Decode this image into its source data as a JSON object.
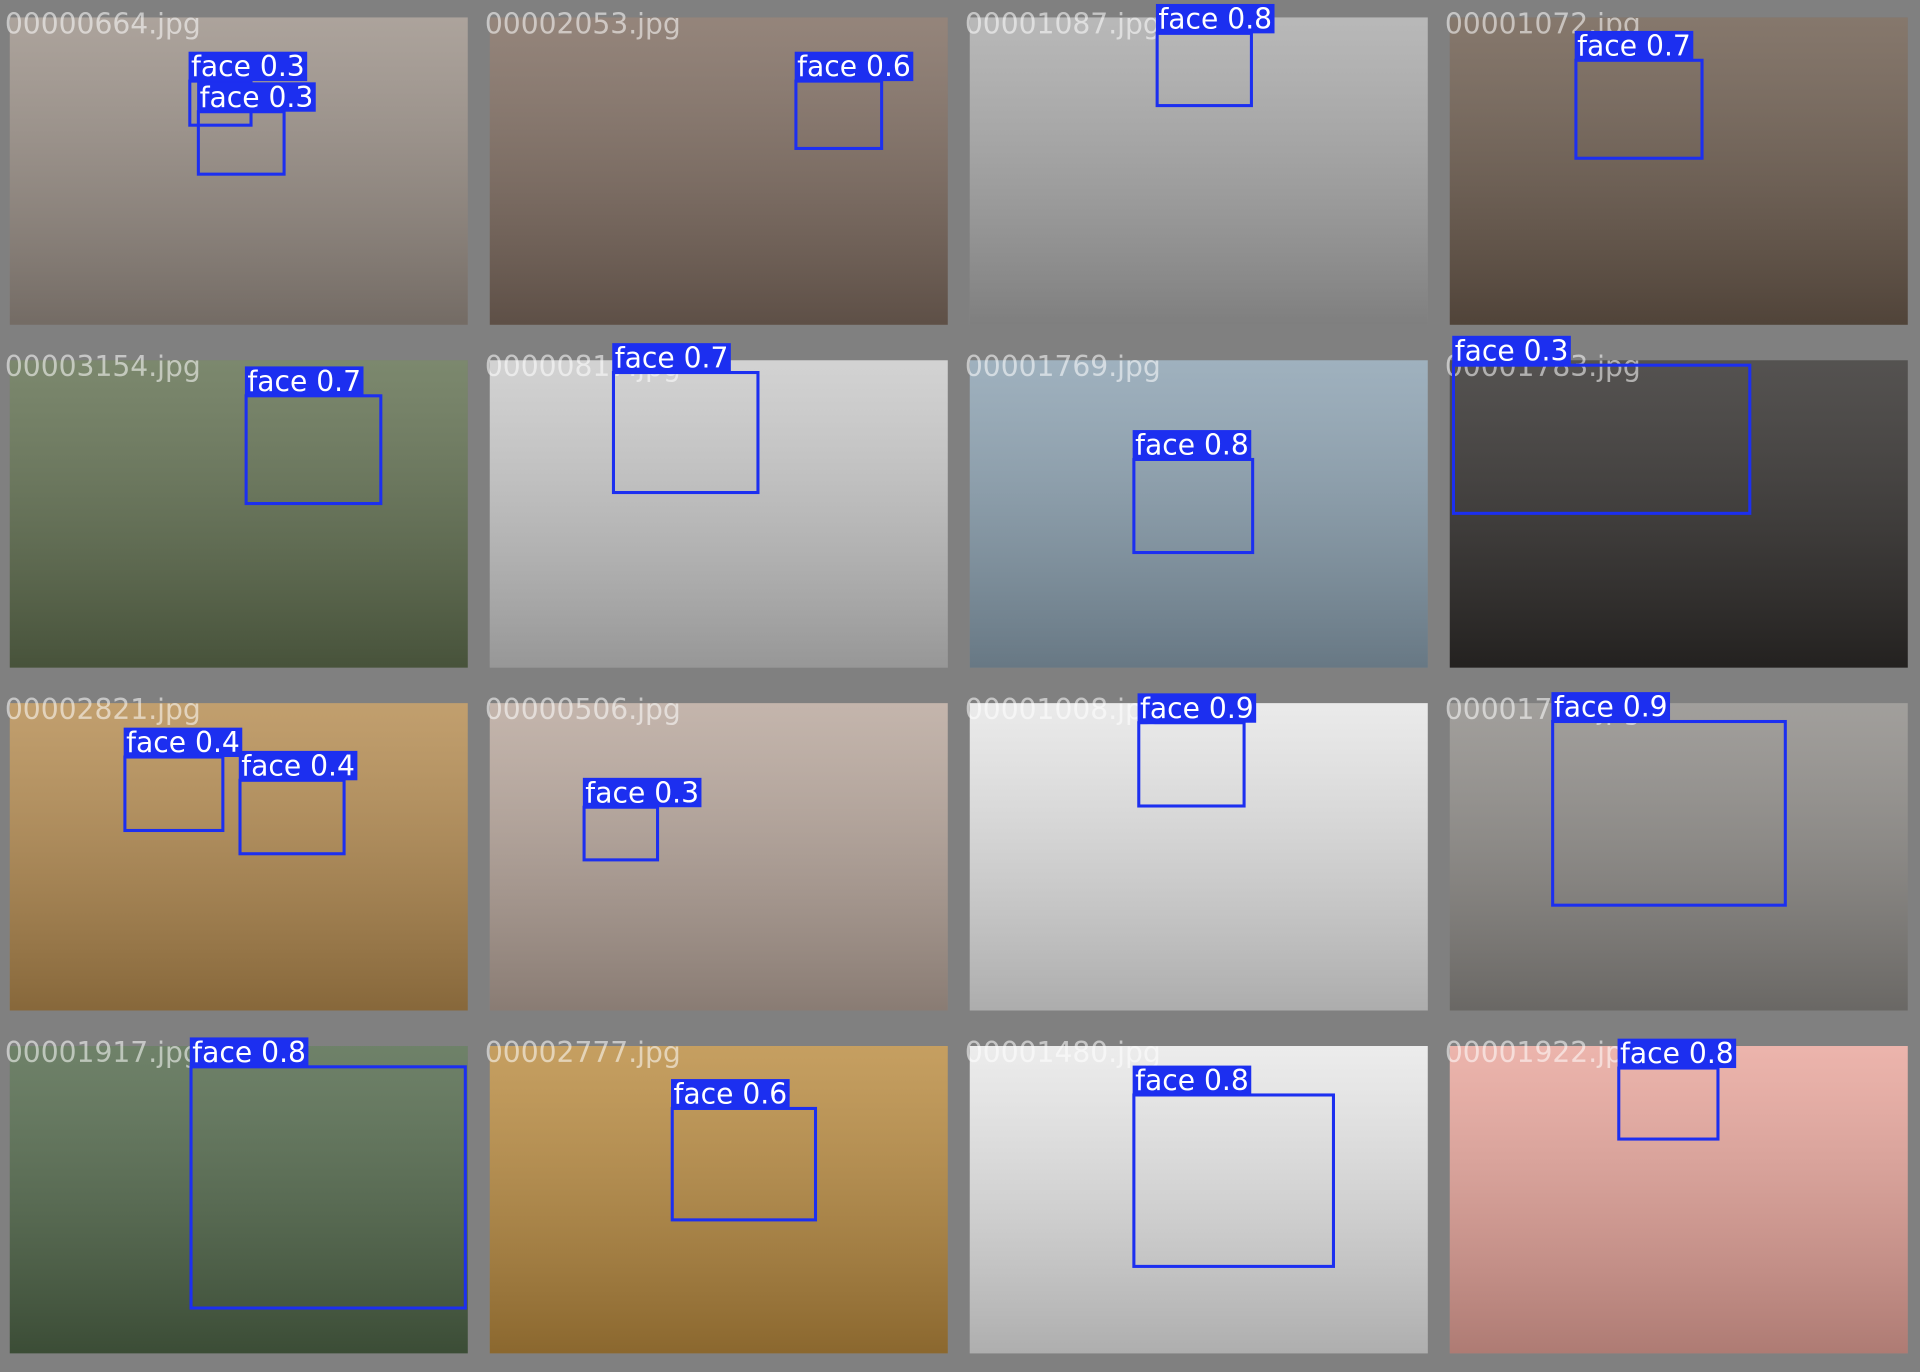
{
  "tiles": [
    {
      "filename": "00000664.jpg",
      "detections": [
        {
          "label": "face 0.3"
        },
        {
          "label": "face 0.3"
        }
      ]
    },
    {
      "filename": "00002053.jpg",
      "detections": [
        {
          "label": "face 0.6"
        }
      ]
    },
    {
      "filename": "00001087.jpg",
      "detections": [
        {
          "label": "face 0.8"
        }
      ]
    },
    {
      "filename": "00001072.jpg",
      "detections": [
        {
          "label": "face 0.7"
        }
      ]
    },
    {
      "filename": "00003154.jpg",
      "detections": [
        {
          "label": "face 0.7"
        }
      ]
    },
    {
      "filename": "00000817.jpg",
      "detections": [
        {
          "label": "face 0.7"
        }
      ]
    },
    {
      "filename": "00001769.jpg",
      "detections": [
        {
          "label": "face 0.8"
        }
      ]
    },
    {
      "filename": "00001783.jpg",
      "detections": [
        {
          "label": "face 0.3"
        }
      ]
    },
    {
      "filename": "00002821.jpg",
      "detections": [
        {
          "label": "face 0.4"
        },
        {
          "label": "face 0.4"
        }
      ]
    },
    {
      "filename": "00000506.jpg",
      "detections": [
        {
          "label": "face 0.3"
        }
      ]
    },
    {
      "filename": "00001008.jpg",
      "detections": [
        {
          "label": "face 0.9"
        }
      ]
    },
    {
      "filename": "00001755.jpg",
      "detections": [
        {
          "label": "face 0.9"
        }
      ]
    },
    {
      "filename": "00001917.jpg",
      "detections": [
        {
          "label": "face 0.8"
        }
      ]
    },
    {
      "filename": "00002777.jpg",
      "detections": [
        {
          "label": "face 0.6"
        }
      ]
    },
    {
      "filename": "00001480.jpg",
      "detections": [
        {
          "label": "face 0.8"
        }
      ]
    },
    {
      "filename": "00001922.jpg",
      "detections": [
        {
          "label": "face 0.8"
        }
      ]
    }
  ]
}
